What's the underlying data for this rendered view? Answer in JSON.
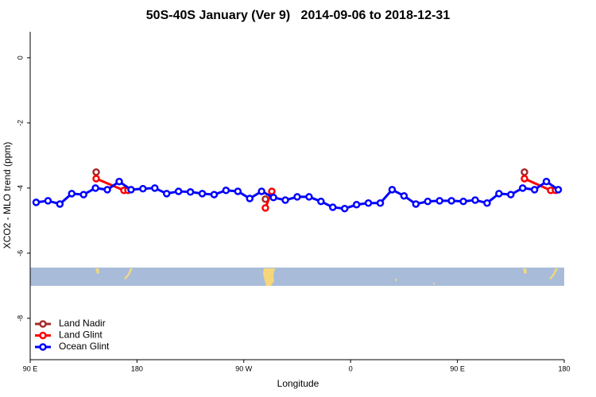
{
  "chart_data": {
    "type": "line",
    "title": "50S-40S January (Ver 9)   2014-09-06 to 2018-12-31",
    "x_label": "Longitude",
    "y_label": "XCO2 - MLO trend (ppm)",
    "xlim": [
      90,
      540
    ],
    "ylim": [
      -9.27,
      0.8
    ],
    "xticks": [
      {
        "value": 90,
        "label": "90 E"
      },
      180,
      {
        "value": 270,
        "label": "90 W"
      },
      {
        "value": 360,
        "label": "0"
      },
      {
        "value": 450,
        "label": "90 E"
      },
      {
        "value": 540,
        "label": "180"
      }
    ],
    "yticks": [
      0,
      -2,
      -4,
      -6,
      -8
    ],
    "legend": "bottom-left",
    "series": [
      {
        "name": "Land Nadir",
        "color": "#a52a2a",
        "x": [
          145.6,
          null,
          288.2,
          null,
          506.5
        ],
        "values": [
          -3.51,
          null,
          -4.34,
          null,
          -3.51
        ]
      },
      {
        "name": "Land Glint",
        "color": "#ff0000",
        "x": [
          145.6,
          169.0,
          172.4,
          null,
          288.2,
          293.6,
          null,
          506.5,
          528.6,
          532.7
        ],
        "values": [
          -3.71,
          -4.07,
          -4.07,
          null,
          -4.61,
          -4.1,
          null,
          -3.71,
          -4.07,
          -4.07
        ]
      },
      {
        "name": "Ocean Glint",
        "color": "#0000ff",
        "x": [
          95,
          105,
          115,
          125,
          135,
          145,
          155,
          165,
          175,
          185,
          195,
          205,
          215,
          225,
          235,
          245,
          255,
          265,
          275,
          285,
          295,
          305,
          315,
          325,
          335,
          345,
          355,
          365,
          375,
          385,
          395,
          405,
          415,
          425,
          435,
          445,
          455,
          465,
          475,
          485,
          495,
          505,
          515,
          525,
          535
        ],
        "values": [
          -4.44,
          -4.39,
          -4.49,
          -4.17,
          -4.2,
          -4.0,
          -4.05,
          -3.8,
          -4.05,
          -4.02,
          -4.0,
          -4.17,
          -4.1,
          -4.12,
          -4.17,
          -4.2,
          -4.07,
          -4.1,
          -4.32,
          -4.1,
          -4.29,
          -4.37,
          -4.27,
          -4.27,
          -4.41,
          -4.59,
          -4.63,
          -4.51,
          -4.46,
          -4.46,
          -4.05,
          -4.24,
          -4.49,
          -4.41,
          -4.39,
          -4.39,
          -4.41,
          -4.37,
          -4.46,
          -4.17,
          -4.2,
          -4.0,
          -4.05,
          -3.8,
          -4.05
        ]
      }
    ]
  }
}
